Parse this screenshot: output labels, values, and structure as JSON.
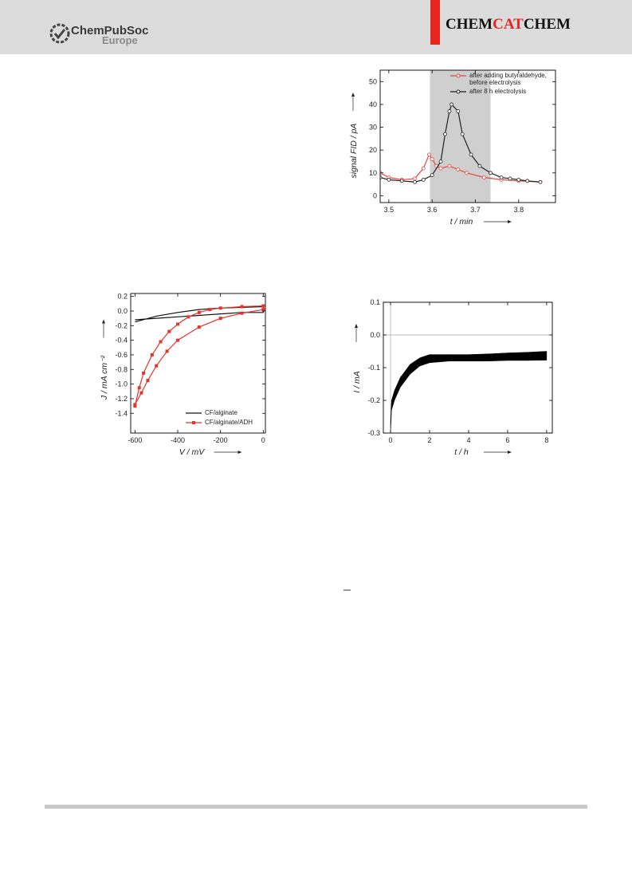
{
  "header": {
    "publisher": "ChemPubSoc",
    "publisher_sub": "Europe",
    "journal": [
      "CHEM",
      "CAT",
      "CHEM"
    ]
  },
  "chart_data": [
    {
      "type": "line",
      "xlabel": "t / min",
      "ylabel": "signal FID / pA",
      "xlim": [
        3.48,
        3.885
      ],
      "ylim": [
        -3,
        55
      ],
      "xticks": [
        3.5,
        3.6,
        3.7,
        3.8
      ],
      "yticks": [
        0,
        10,
        20,
        30,
        40,
        50
      ],
      "shade": [
        3.595,
        3.735
      ],
      "legend": "upper right",
      "series": [
        {
          "name": "after adding butyraldehyde, before electrolysis",
          "color": "#e8453c",
          "marker": "o",
          "x": [
            3.48,
            3.5,
            3.53,
            3.56,
            3.58,
            3.593,
            3.6,
            3.61,
            3.62,
            3.64,
            3.66,
            3.68,
            3.72,
            3.76,
            3.8,
            3.85
          ],
          "values": [
            10,
            8,
            7,
            7.5,
            12,
            18,
            16,
            13,
            12,
            13,
            11.5,
            10,
            8,
            7,
            6.5,
            6
          ]
        },
        {
          "name": "after 8 h electrolysis",
          "color": "#222222",
          "marker": "o",
          "x": [
            3.48,
            3.5,
            3.53,
            3.56,
            3.58,
            3.6,
            3.62,
            3.63,
            3.64,
            3.645,
            3.66,
            3.67,
            3.69,
            3.71,
            3.735,
            3.76,
            3.78,
            3.8,
            3.82,
            3.85
          ],
          "values": [
            8,
            7,
            6.5,
            6,
            7,
            9,
            15,
            27,
            37,
            40,
            37,
            27,
            18,
            13,
            10,
            8,
            7.5,
            7,
            6.5,
            6
          ]
        }
      ]
    },
    {
      "type": "line",
      "xlabel": "V / mV",
      "ylabel": "J / mA cm⁻²",
      "xlim": [
        -620,
        10
      ],
      "ylim": [
        -1.67,
        0.24
      ],
      "xticks": [
        -600,
        -400,
        -200,
        0
      ],
      "yticks": [
        0.2,
        {
          "value": 0,
          "label": "0.0"
        },
        -0.2,
        -0.4,
        -0.6,
        -0.8,
        {
          "value": -1,
          "label": "-1.0"
        },
        -1.2,
        -1.4
      ],
      "legend": "lower right",
      "series": [
        {
          "name": "CF/alginate",
          "color": "#111111",
          "marker": null,
          "x": [
            -600,
            -500,
            -400,
            -300,
            -200,
            -100,
            0,
            0,
            -100,
            -200,
            -300,
            -400,
            -500,
            -600
          ],
          "values": [
            -0.15,
            -0.07,
            -0.02,
            0.02,
            0.04,
            0.05,
            0.06,
            -0.02,
            -0.02,
            -0.04,
            -0.06,
            -0.08,
            -0.1,
            -0.12
          ]
        },
        {
          "name": "CF/alginate/ADH",
          "color": "#e8332c",
          "marker": "s",
          "x": [
            -600,
            -580,
            -560,
            -520,
            -480,
            -440,
            -400,
            -350,
            -300,
            -250,
            -200,
            -100,
            0,
            0,
            -100,
            -200,
            -300,
            -400,
            -450,
            -500,
            -540,
            -570,
            -600
          ],
          "values": [
            -1.3,
            -1.05,
            -0.85,
            -0.6,
            -0.42,
            -0.28,
            -0.18,
            -0.08,
            -0.02,
            0.02,
            0.04,
            0.06,
            0.07,
            0.02,
            -0.03,
            -0.1,
            -0.22,
            -0.4,
            -0.55,
            -0.75,
            -0.95,
            -1.12,
            -1.28
          ]
        }
      ]
    },
    {
      "type": "band",
      "xlabel": "t / h",
      "ylabel": "I / mA",
      "color": "#000000",
      "zero_lines": true,
      "xlim": [
        -0.37,
        8.29
      ],
      "ylim": [
        -0.3,
        0.1
      ],
      "xticks": [
        0,
        2,
        4,
        6,
        8
      ],
      "yticks": [
        0.1,
        {
          "value": 0,
          "label": "0.0"
        },
        -0.1,
        -0.2,
        -0.3
      ],
      "x": [
        0,
        0.05,
        0.2,
        0.5,
        1,
        1.5,
        2,
        3,
        4,
        5,
        6,
        7,
        8
      ],
      "upper": [
        -0.27,
        -0.2,
        -0.17,
        -0.13,
        -0.09,
        -0.07,
        -0.06,
        -0.06,
        -0.06,
        -0.058,
        -0.055,
        -0.053,
        -0.05
      ],
      "lower": [
        -0.3,
        -0.23,
        -0.2,
        -0.16,
        -0.12,
        -0.095,
        -0.085,
        -0.08,
        -0.08,
        -0.08,
        -0.078,
        -0.078,
        -0.077
      ]
    }
  ]
}
